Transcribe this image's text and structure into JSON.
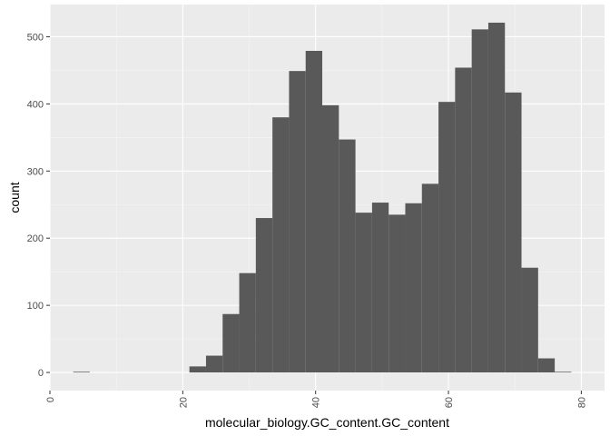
{
  "chart_data": {
    "type": "bar",
    "subtype": "histogram",
    "title": "",
    "xlabel": "molecular_biology.GC_content.GC_content",
    "ylabel": "count",
    "xlim": [
      0,
      83.5
    ],
    "ylim": [
      -27,
      548
    ],
    "x_ticks": [
      0,
      20,
      40,
      60,
      80
    ],
    "y_ticks": [
      0,
      100,
      200,
      300,
      400,
      500
    ],
    "grid": true,
    "x_tick_label_rotation": "vertical",
    "bin_width": 2.5,
    "bins": [
      {
        "x0": 3.5,
        "x1": 6.0,
        "count": 1
      },
      {
        "x0": 21.0,
        "x1": 23.5,
        "count": 9
      },
      {
        "x0": 23.5,
        "x1": 26.0,
        "count": 25
      },
      {
        "x0": 26.0,
        "x1": 28.5,
        "count": 87
      },
      {
        "x0": 28.5,
        "x1": 31.0,
        "count": 148
      },
      {
        "x0": 31.0,
        "x1": 33.5,
        "count": 230
      },
      {
        "x0": 33.5,
        "x1": 36.0,
        "count": 380
      },
      {
        "x0": 36.0,
        "x1": 38.5,
        "count": 449
      },
      {
        "x0": 38.5,
        "x1": 41.0,
        "count": 479
      },
      {
        "x0": 41.0,
        "x1": 43.5,
        "count": 398
      },
      {
        "x0": 43.5,
        "x1": 46.0,
        "count": 347
      },
      {
        "x0": 46.0,
        "x1": 48.5,
        "count": 238
      },
      {
        "x0": 48.5,
        "x1": 51.0,
        "count": 253
      },
      {
        "x0": 51.0,
        "x1": 53.5,
        "count": 235
      },
      {
        "x0": 53.5,
        "x1": 56.0,
        "count": 252
      },
      {
        "x0": 56.0,
        "x1": 58.5,
        "count": 281
      },
      {
        "x0": 58.5,
        "x1": 61.0,
        "count": 403
      },
      {
        "x0": 61.0,
        "x1": 63.5,
        "count": 454
      },
      {
        "x0": 63.5,
        "x1": 66.0,
        "count": 511
      },
      {
        "x0": 66.0,
        "x1": 68.5,
        "count": 521
      },
      {
        "x0": 68.5,
        "x1": 71.0,
        "count": 417
      },
      {
        "x0": 71.0,
        "x1": 73.5,
        "count": 156
      },
      {
        "x0": 73.5,
        "x1": 76.0,
        "count": 21
      },
      {
        "x0": 76.0,
        "x1": 78.5,
        "count": 1
      }
    ],
    "colors": {
      "panel": "#ebebeb",
      "grid_major": "#ffffff",
      "grid_minor": "#f5f5f5",
      "bar": "#595959",
      "tick": "#333333"
    }
  }
}
